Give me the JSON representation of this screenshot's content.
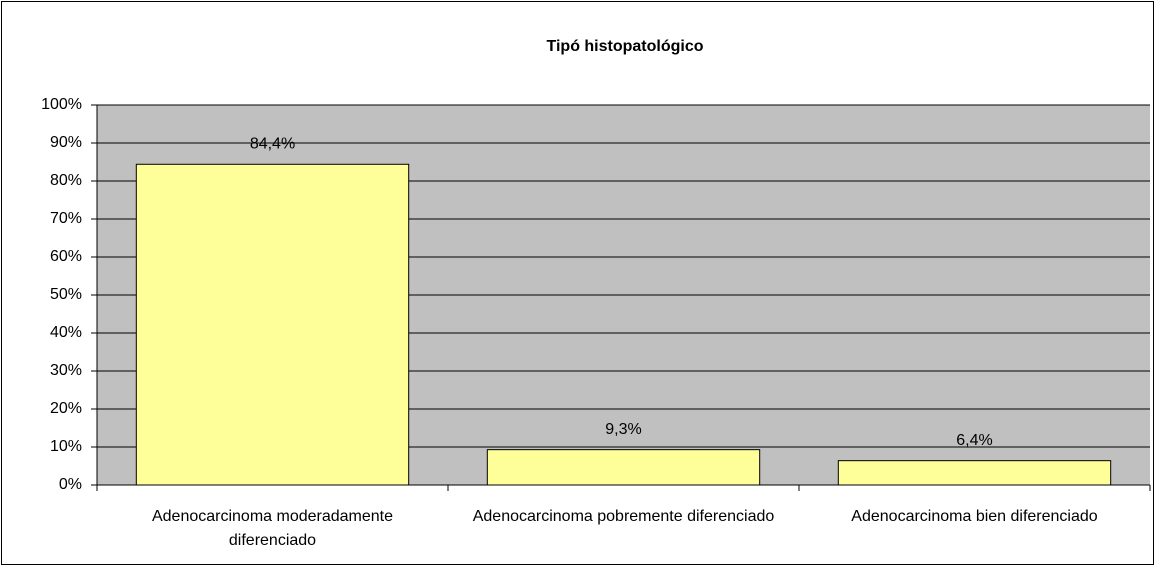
{
  "chart_data": {
    "type": "bar",
    "title": "Tipó histopatológico",
    "categories": [
      "Adenocarcinoma moderadamente diferenciado",
      "Adenocarcinoma pobremente diferenciado",
      "Adenocarcinoma bien diferenciado"
    ],
    "values": [
      84.4,
      9.3,
      6.4
    ],
    "value_labels": [
      "84,4%",
      "9,3%",
      "6,4%"
    ],
    "color": "#ffff99",
    "ylim": [
      0,
      100
    ],
    "yticks": [
      {
        "value": 0,
        "label": "0%"
      },
      {
        "value": 10,
        "label": "10%"
      },
      {
        "value": 20,
        "label": "20%"
      },
      {
        "value": 30,
        "label": "30%"
      },
      {
        "value": 40,
        "label": "40%"
      },
      {
        "value": 50,
        "label": "50%"
      },
      {
        "value": 60,
        "label": "60%"
      },
      {
        "value": 70,
        "label": "70%"
      },
      {
        "value": 80,
        "label": "80%"
      },
      {
        "value": 90,
        "label": "90%"
      },
      {
        "value": 100,
        "label": "100%"
      }
    ],
    "grid": true
  }
}
